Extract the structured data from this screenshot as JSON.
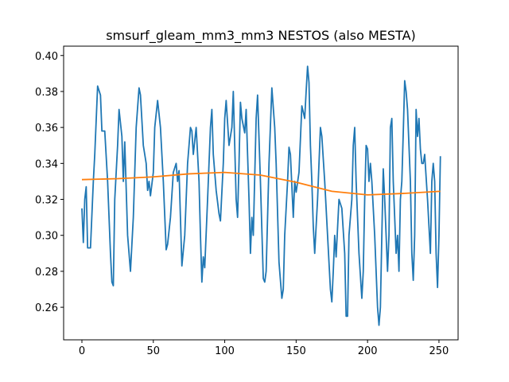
{
  "chart_data": {
    "type": "line",
    "title": "smsurf_gleam_mm3_mm3 NESTOS (also MESTA)",
    "xlim": [
      -12.8,
      263.4
    ],
    "xticks": [
      0,
      50,
      100,
      150,
      200,
      250
    ],
    "ylim": [
      0.2419,
      0.4052
    ],
    "yticks": [
      0.26,
      0.28,
      {
        "value": 0.3,
        "label": "0.30"
      },
      0.32,
      0.34,
      0.36,
      0.38,
      {
        "value": 0.4,
        "label": "0.40"
      }
    ],
    "series": [
      {
        "color": "#1f77b4",
        "x": [
          0,
          1,
          2,
          3,
          4,
          6,
          8,
          9,
          11,
          13,
          14,
          16,
          18,
          20,
          21,
          22,
          23,
          25,
          26,
          28,
          29,
          30,
          32,
          34,
          36,
          38,
          40,
          41,
          43,
          45,
          46,
          47,
          48,
          50,
          51,
          53,
          55,
          57,
          59,
          60,
          62,
          64,
          66,
          67,
          68,
          70,
          72,
          74,
          76,
          77,
          78,
          80,
          82,
          83,
          84,
          85,
          86,
          88,
          90,
          91,
          92,
          94,
          96,
          97,
          99,
          100,
          101,
          103,
          105,
          106,
          108,
          109,
          110,
          111,
          112,
          114,
          115,
          117,
          118,
          119,
          120,
          122,
          123,
          125,
          127,
          128,
          129,
          131,
          133,
          135,
          136,
          138,
          140,
          141,
          142,
          144,
          145,
          146,
          148,
          149,
          150,
          152,
          154,
          156,
          157,
          158,
          159,
          160,
          161,
          162,
          163,
          165,
          167,
          168,
          170,
          172,
          174,
          175,
          176,
          177,
          178,
          180,
          182,
          184,
          185,
          186,
          187,
          189,
          190,
          191,
          192,
          194,
          196,
          197,
          198,
          199,
          200,
          201,
          202,
          203,
          205,
          207,
          208,
          209,
          210,
          211,
          212,
          214,
          215,
          216,
          217,
          218,
          219,
          220,
          221,
          222,
          223,
          224,
          225,
          226,
          227,
          228,
          230,
          231,
          232,
          233,
          234,
          235,
          236,
          237,
          238,
          239,
          240,
          242,
          244,
          245,
          246,
          247,
          248,
          249,
          250,
          251
        ],
        "values": [
          0.315,
          0.296,
          0.32,
          0.327,
          0.293,
          0.293,
          0.33,
          0.345,
          0.383,
          0.378,
          0.358,
          0.358,
          0.33,
          0.29,
          0.274,
          0.272,
          0.32,
          0.35,
          0.37,
          0.355,
          0.33,
          0.352,
          0.3,
          0.28,
          0.31,
          0.36,
          0.382,
          0.378,
          0.35,
          0.34,
          0.325,
          0.33,
          0.322,
          0.335,
          0.36,
          0.375,
          0.36,
          0.33,
          0.292,
          0.295,
          0.31,
          0.335,
          0.34,
          0.33,
          0.336,
          0.283,
          0.3,
          0.34,
          0.36,
          0.358,
          0.345,
          0.36,
          0.33,
          0.3,
          0.274,
          0.288,
          0.282,
          0.32,
          0.36,
          0.37,
          0.345,
          0.325,
          0.312,
          0.308,
          0.34,
          0.365,
          0.375,
          0.35,
          0.36,
          0.38,
          0.32,
          0.31,
          0.34,
          0.374,
          0.365,
          0.357,
          0.37,
          0.32,
          0.29,
          0.31,
          0.3,
          0.365,
          0.378,
          0.33,
          0.276,
          0.274,
          0.28,
          0.34,
          0.382,
          0.36,
          0.34,
          0.285,
          0.265,
          0.27,
          0.3,
          0.33,
          0.349,
          0.345,
          0.31,
          0.33,
          0.324,
          0.335,
          0.372,
          0.365,
          0.38,
          0.394,
          0.385,
          0.35,
          0.33,
          0.305,
          0.29,
          0.32,
          0.36,
          0.355,
          0.33,
          0.3,
          0.27,
          0.263,
          0.28,
          0.3,
          0.288,
          0.32,
          0.315,
          0.29,
          0.255,
          0.255,
          0.3,
          0.32,
          0.35,
          0.36,
          0.33,
          0.29,
          0.265,
          0.28,
          0.32,
          0.35,
          0.348,
          0.33,
          0.34,
          0.33,
          0.3,
          0.26,
          0.25,
          0.26,
          0.3,
          0.337,
          0.32,
          0.28,
          0.3,
          0.36,
          0.365,
          0.33,
          0.31,
          0.29,
          0.3,
          0.28,
          0.32,
          0.33,
          0.357,
          0.386,
          0.38,
          0.37,
          0.33,
          0.29,
          0.275,
          0.3,
          0.37,
          0.355,
          0.365,
          0.348,
          0.34,
          0.34,
          0.345,
          0.32,
          0.29,
          0.33,
          0.34,
          0.33,
          0.29,
          0.271,
          0.3,
          0.344
        ]
      },
      {
        "color": "#ff7f0e",
        "x": [
          0,
          25,
          50,
          75,
          100,
          125,
          150,
          175,
          200,
          225,
          251
        ],
        "values": [
          0.331,
          0.3315,
          0.3325,
          0.3342,
          0.335,
          0.3335,
          0.3295,
          0.3245,
          0.3225,
          0.3233,
          0.3245
        ]
      }
    ]
  }
}
